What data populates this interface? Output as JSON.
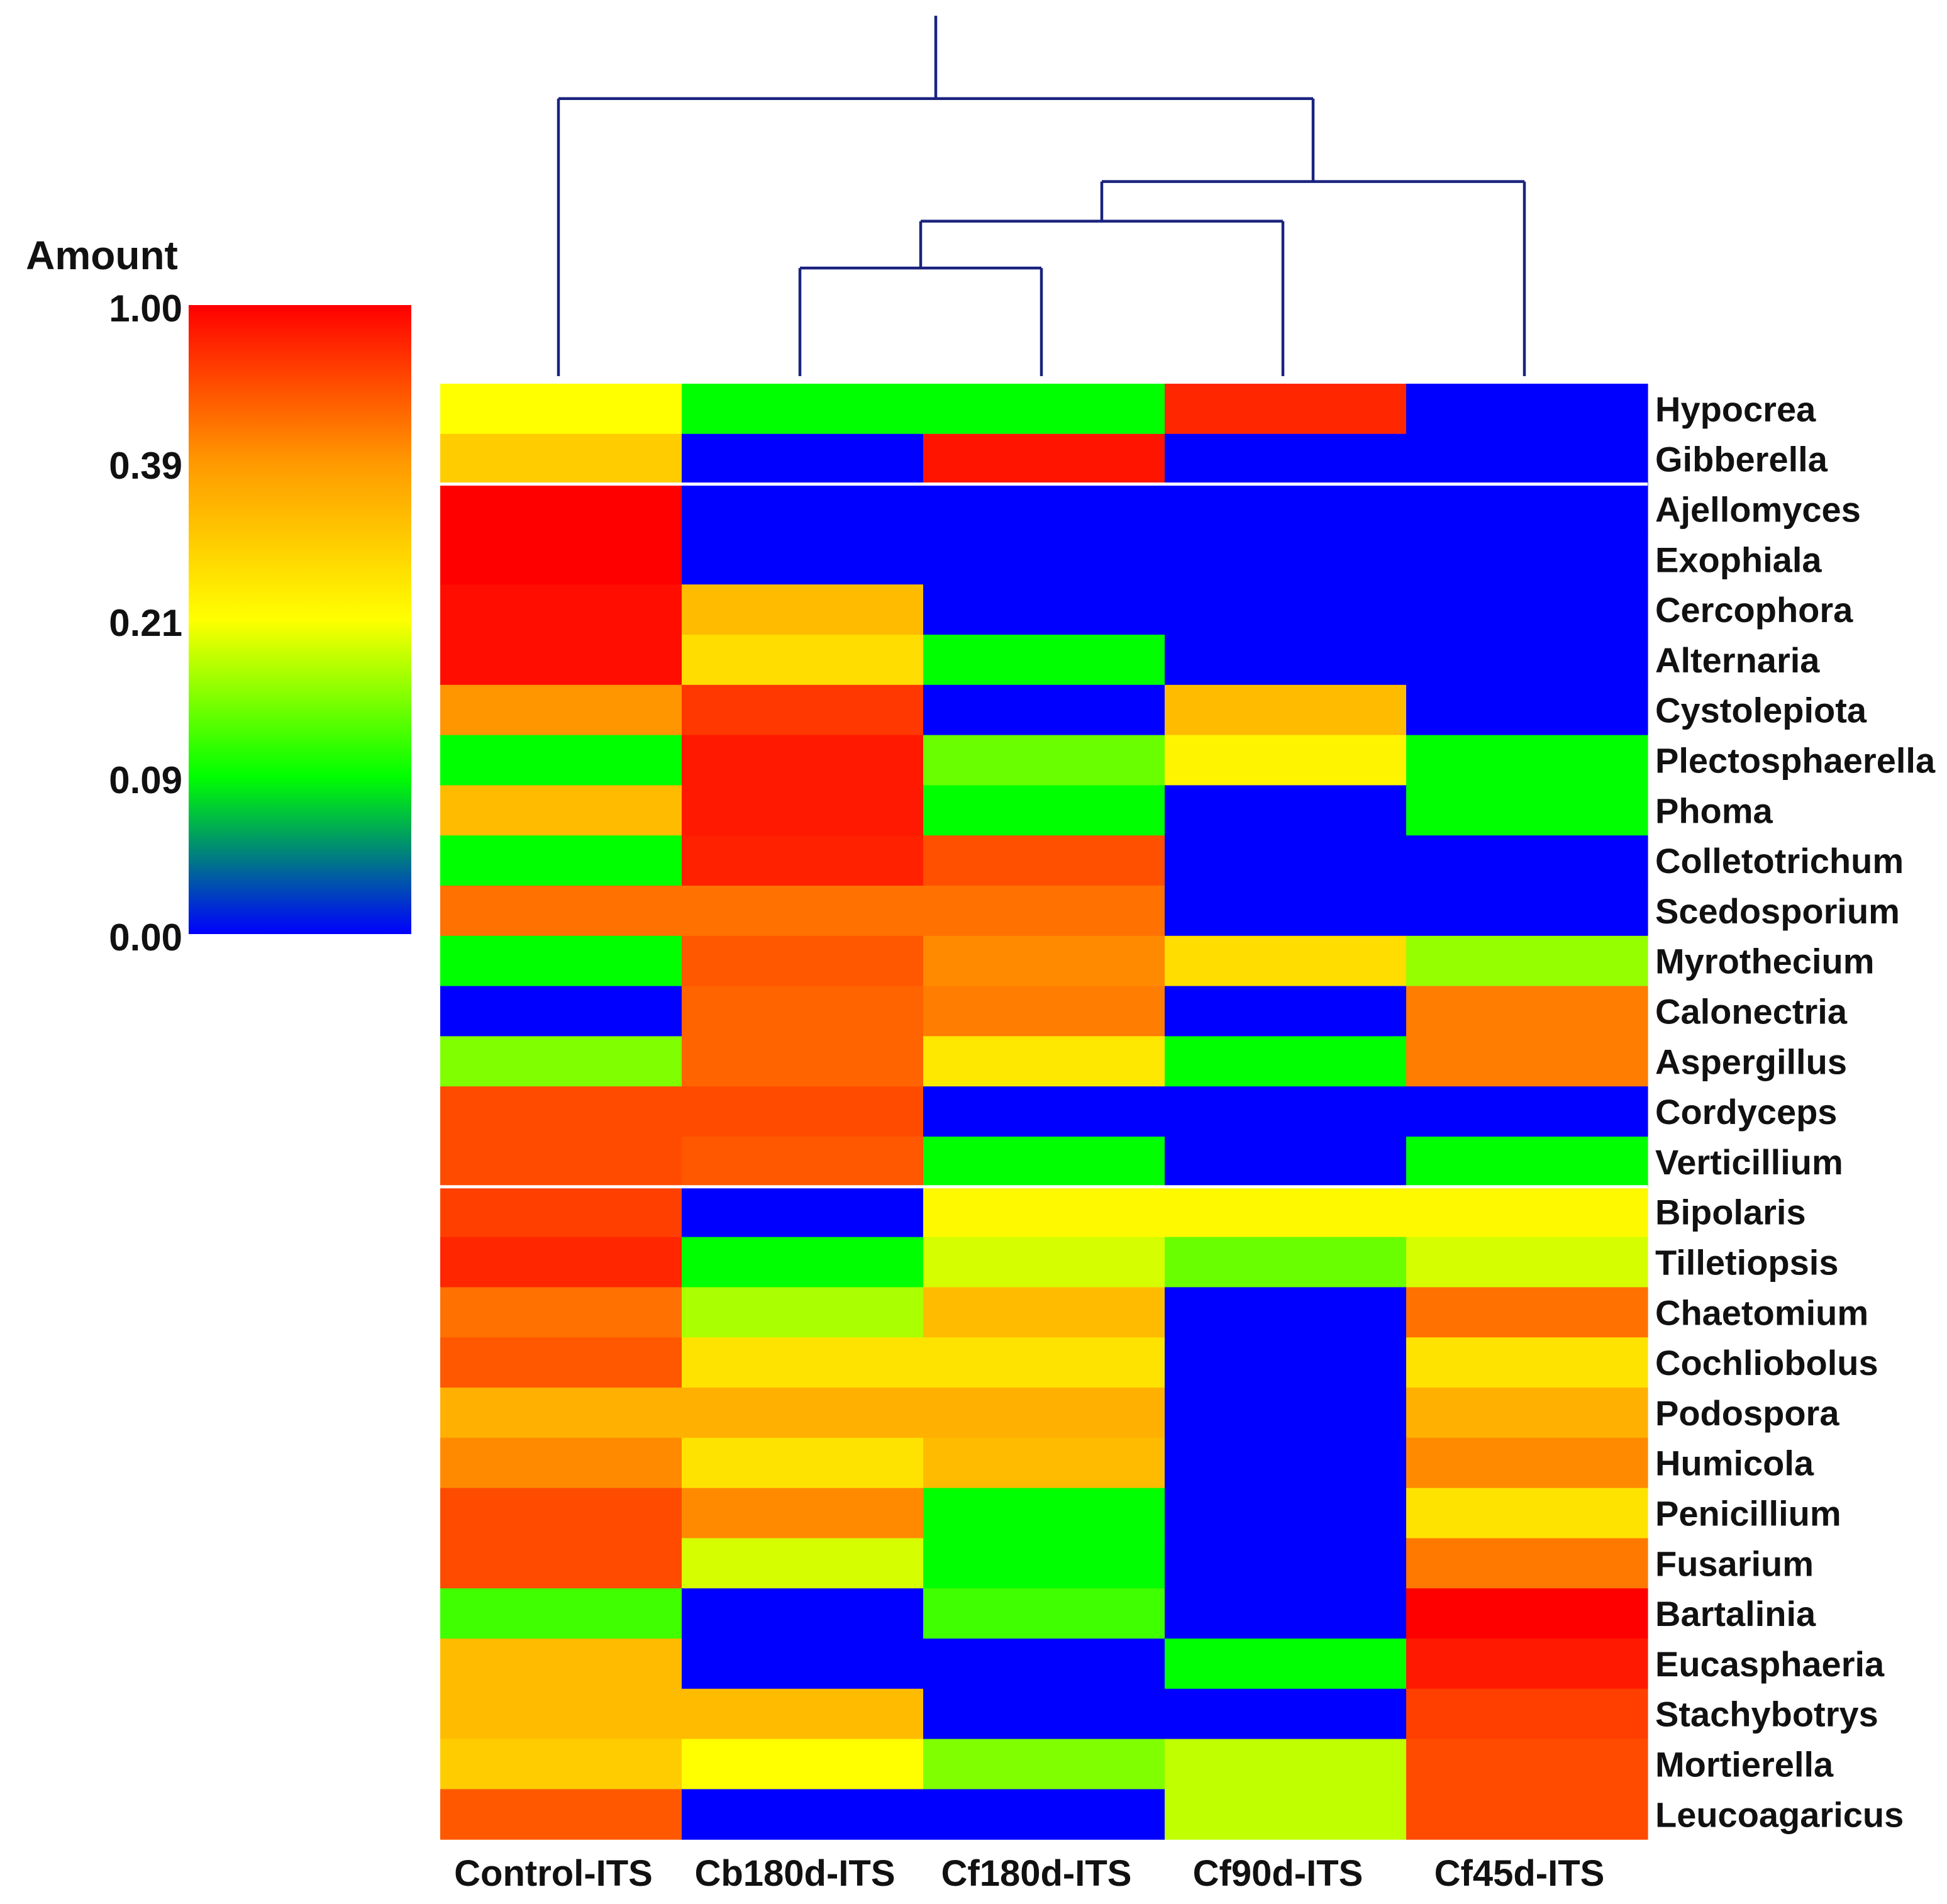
{
  "chart_data": {
    "type": "heatmap",
    "title": "",
    "legend": {
      "title": "Amount",
      "ticks": [
        "1.00",
        "0.39",
        "0.21",
        "0.09",
        "0.00"
      ],
      "tick_values": [
        1.0,
        0.39,
        0.21,
        0.09,
        0.0
      ],
      "stops": [
        {
          "value": 1.0,
          "color": "#ff0000"
        },
        {
          "value": 0.39,
          "color": "#ff9900"
        },
        {
          "value": 0.21,
          "color": "#ffff00"
        },
        {
          "value": 0.09,
          "color": "#00ff00"
        },
        {
          "value": 0.0,
          "color": "#0000ff"
        }
      ]
    },
    "columns": [
      "Control-ITS",
      "Cb180d-ITS",
      "Cf180d-ITS",
      "Cf90d-ITS",
      "Cf45d-ITS"
    ],
    "rows": [
      "Hypocrea",
      "Gibberella",
      "Ajellomyces",
      "Exophiala",
      "Cercophora",
      "Alternaria",
      "Cystolepiota",
      "Plectosphaerella",
      "Phoma",
      "Colletotrichum",
      "Scedosporium",
      "Myrothecium",
      "Calonectria",
      "Aspergillus",
      "Cordyceps",
      "Verticillium",
      "Bipolaris",
      "Tilletiopsis",
      "Chaetomium",
      "Cochliobolus",
      "Podospora",
      "Humicola",
      "Penicillium",
      "Fusarium",
      "Bartalinia",
      "Eucasphaeria",
      "Stachybotrys",
      "Mortierella",
      "Leucoagaricus"
    ],
    "row_group_breaks_after": [
      2,
      16
    ],
    "values": [
      [
        0.21,
        0.09,
        0.09,
        0.85,
        0.0
      ],
      [
        0.3,
        0.0,
        0.92,
        0.0,
        0.0
      ],
      [
        1.0,
        0.0,
        0.0,
        0.0,
        0.0
      ],
      [
        1.0,
        0.0,
        0.0,
        0.0,
        0.0
      ],
      [
        0.95,
        0.33,
        0.0,
        0.0,
        0.0
      ],
      [
        0.95,
        0.27,
        0.09,
        0.0,
        0.0
      ],
      [
        0.4,
        0.78,
        0.0,
        0.33,
        0.0
      ],
      [
        0.09,
        0.9,
        0.14,
        0.23,
        0.09
      ],
      [
        0.33,
        0.9,
        0.09,
        0.0,
        0.09
      ],
      [
        0.09,
        0.87,
        0.68,
        0.0,
        0.0
      ],
      [
        0.55,
        0.55,
        0.55,
        0.0,
        0.0
      ],
      [
        0.09,
        0.65,
        0.45,
        0.27,
        0.16
      ],
      [
        0.0,
        0.6,
        0.5,
        0.0,
        0.5
      ],
      [
        0.15,
        0.6,
        0.25,
        0.09,
        0.5
      ],
      [
        0.7,
        0.7,
        0.0,
        0.0,
        0.0
      ],
      [
        0.7,
        0.65,
        0.09,
        0.0,
        0.09
      ],
      [
        0.75,
        0.0,
        0.22,
        0.22,
        0.22
      ],
      [
        0.85,
        0.09,
        0.19,
        0.14,
        0.19
      ],
      [
        0.55,
        0.17,
        0.33,
        0.0,
        0.55
      ],
      [
        0.65,
        0.26,
        0.26,
        0.0,
        0.26
      ],
      [
        0.35,
        0.35,
        0.35,
        0.0,
        0.35
      ],
      [
        0.45,
        0.26,
        0.33,
        0.0,
        0.45
      ],
      [
        0.7,
        0.45,
        0.09,
        0.0,
        0.26
      ],
      [
        0.7,
        0.19,
        0.09,
        0.0,
        0.52
      ],
      [
        0.12,
        0.0,
        0.12,
        0.0,
        1.0
      ],
      [
        0.33,
        0.0,
        0.0,
        0.09,
        0.9
      ],
      [
        0.33,
        0.33,
        0.0,
        0.0,
        0.75
      ],
      [
        0.3,
        0.21,
        0.15,
        0.18,
        0.7
      ],
      [
        0.65,
        0.0,
        0.0,
        0.18,
        0.7
      ]
    ],
    "dendrogram": {
      "leaves_order": [
        "Control-ITS",
        "Cb180d-ITS",
        "Cf180d-ITS",
        "Cf90d-ITS",
        "Cf45d-ITS"
      ],
      "merges": [
        {
          "left": "Cb180d-ITS",
          "right": "Cf180d-ITS",
          "height": 0.3
        },
        {
          "left": "merge0",
          "right": "Cf90d-ITS",
          "height": 0.43
        },
        {
          "left": "merge1",
          "right": "Cf45d-ITS",
          "height": 0.54
        },
        {
          "left": "Control-ITS",
          "right": "merge2",
          "height": 0.77
        }
      ],
      "line_color": "#1a237e"
    }
  }
}
